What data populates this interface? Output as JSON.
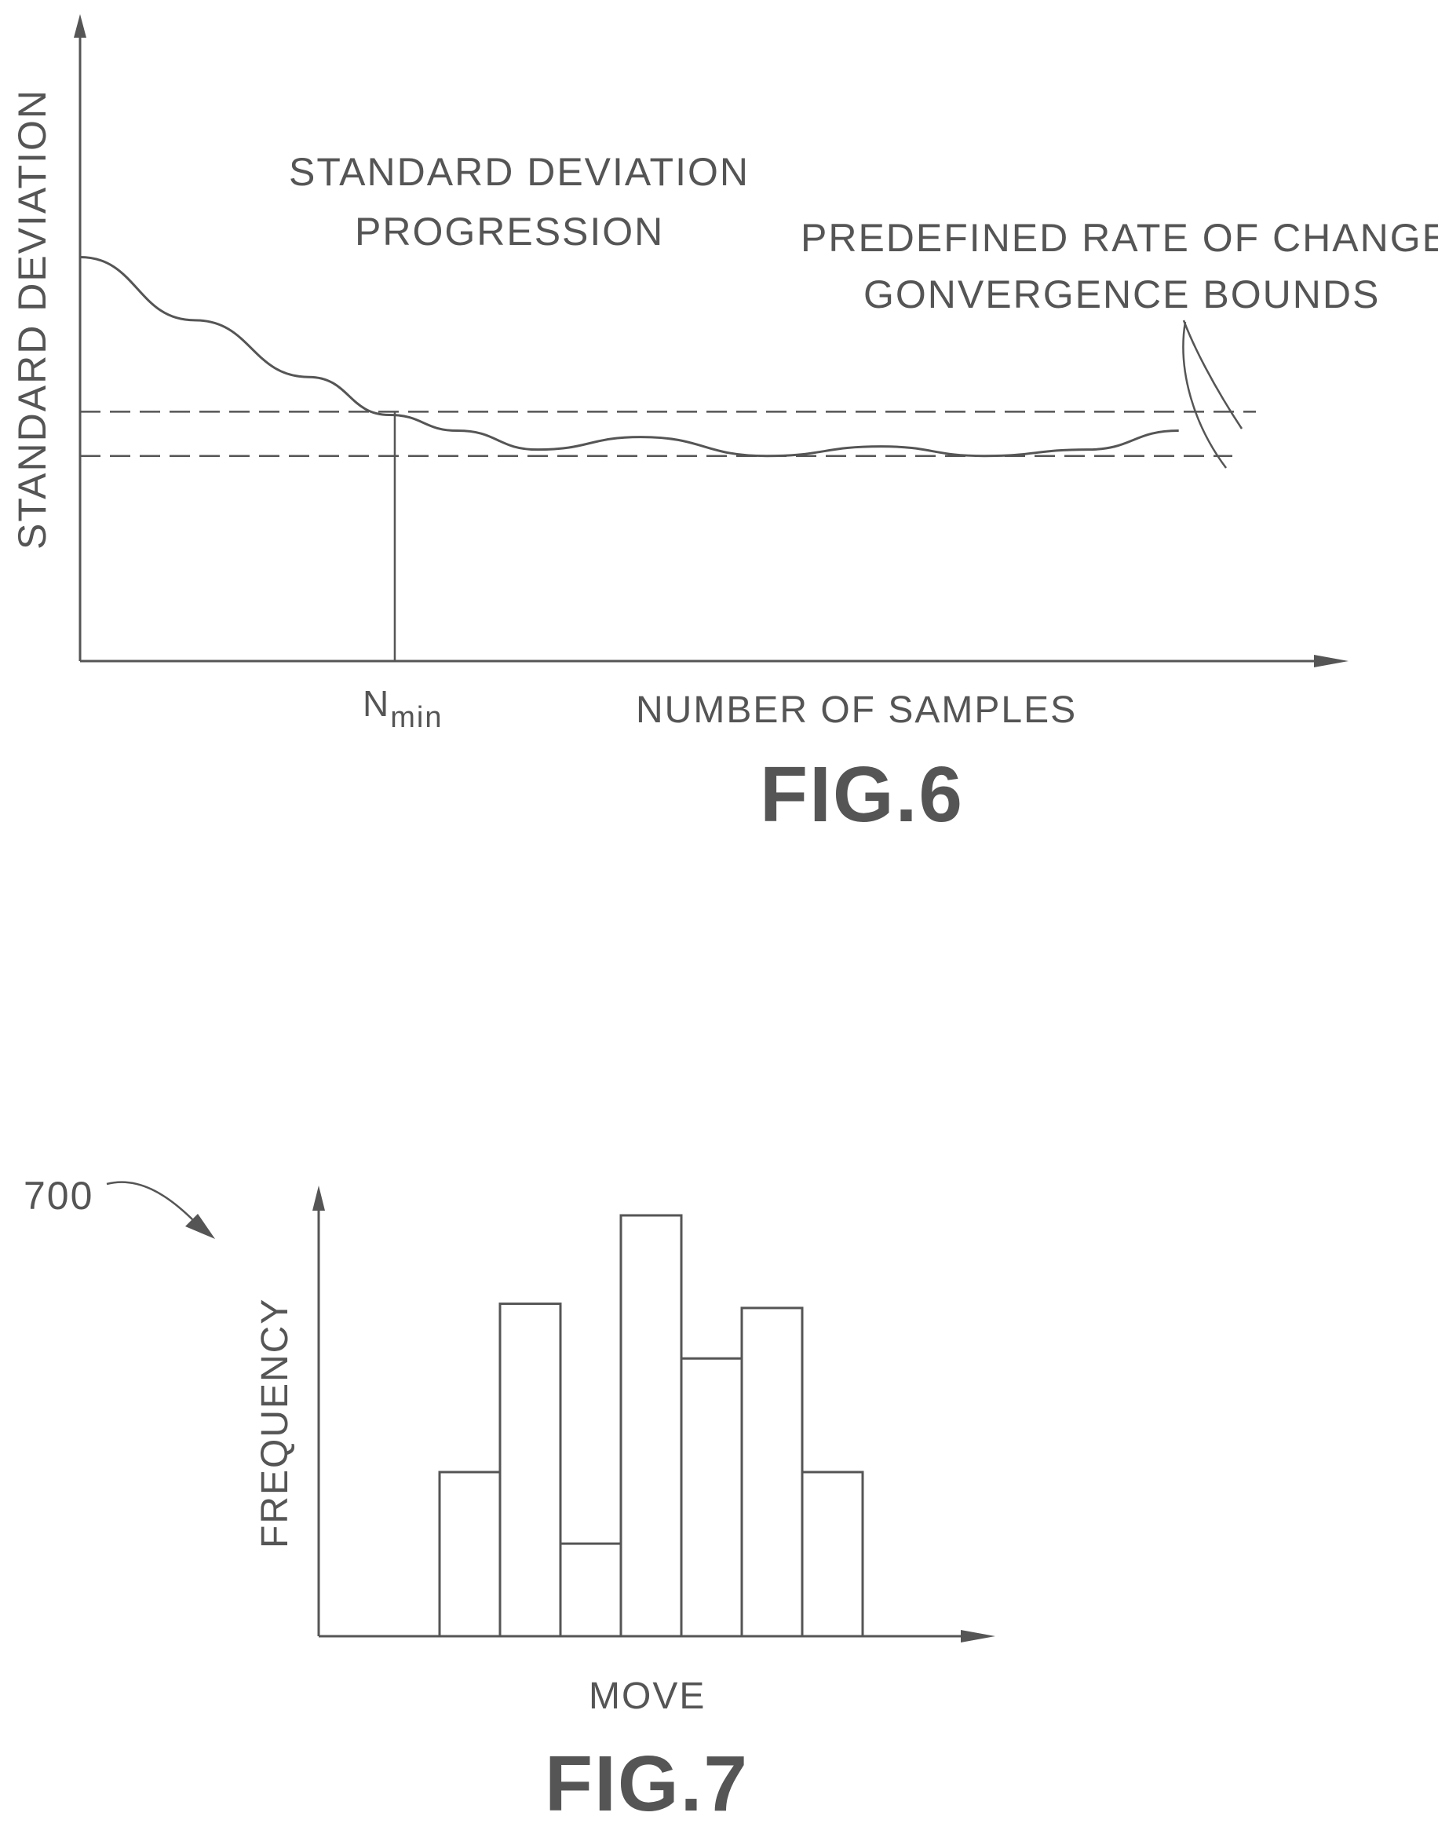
{
  "fig6": {
    "fig_label": "FIG.6",
    "curve_label_line1": "STANDARD DEVIATION",
    "curve_label_line2": "PROGRESSION",
    "bounds_label_line1": "PREDEFINED RATE OF CHANGE",
    "bounds_label_line2": "GONVERGENCE BOUNDS",
    "nmin_main": "N",
    "nmin_sub": "min"
  },
  "fig7": {
    "fig_label": "FIG.7",
    "ref_numeral": "700"
  },
  "chart_data": [
    {
      "type": "line",
      "title": "",
      "xlabel": "NUMBER OF SAMPLES",
      "ylabel": "STANDARD DEVIATION",
      "series": [
        {
          "name": "STANDARD DEVIATION PROGRESSION",
          "x": [
            0,
            0.1,
            0.2,
            0.27,
            0.33,
            0.4,
            0.49,
            0.6,
            0.7,
            0.79,
            0.88,
            0.96
          ],
          "y": [
            0.64,
            0.54,
            0.45,
            0.39,
            0.365,
            0.335,
            0.355,
            0.325,
            0.34,
            0.325,
            0.335,
            0.365
          ]
        }
      ],
      "bounds": {
        "upper": 0.395,
        "lower": 0.325
      },
      "x_marker": {
        "label": "N_min",
        "x": 0.275
      }
    },
    {
      "type": "bar",
      "title": "",
      "xlabel": "MOVE",
      "ylabel": "FREQUENCY",
      "values": [
        0,
        0,
        0.39,
        0.79,
        0.22,
        1.0,
        0.66,
        0.78,
        0.39,
        0,
        0
      ],
      "ylim": [
        0,
        1.1
      ]
    }
  ]
}
